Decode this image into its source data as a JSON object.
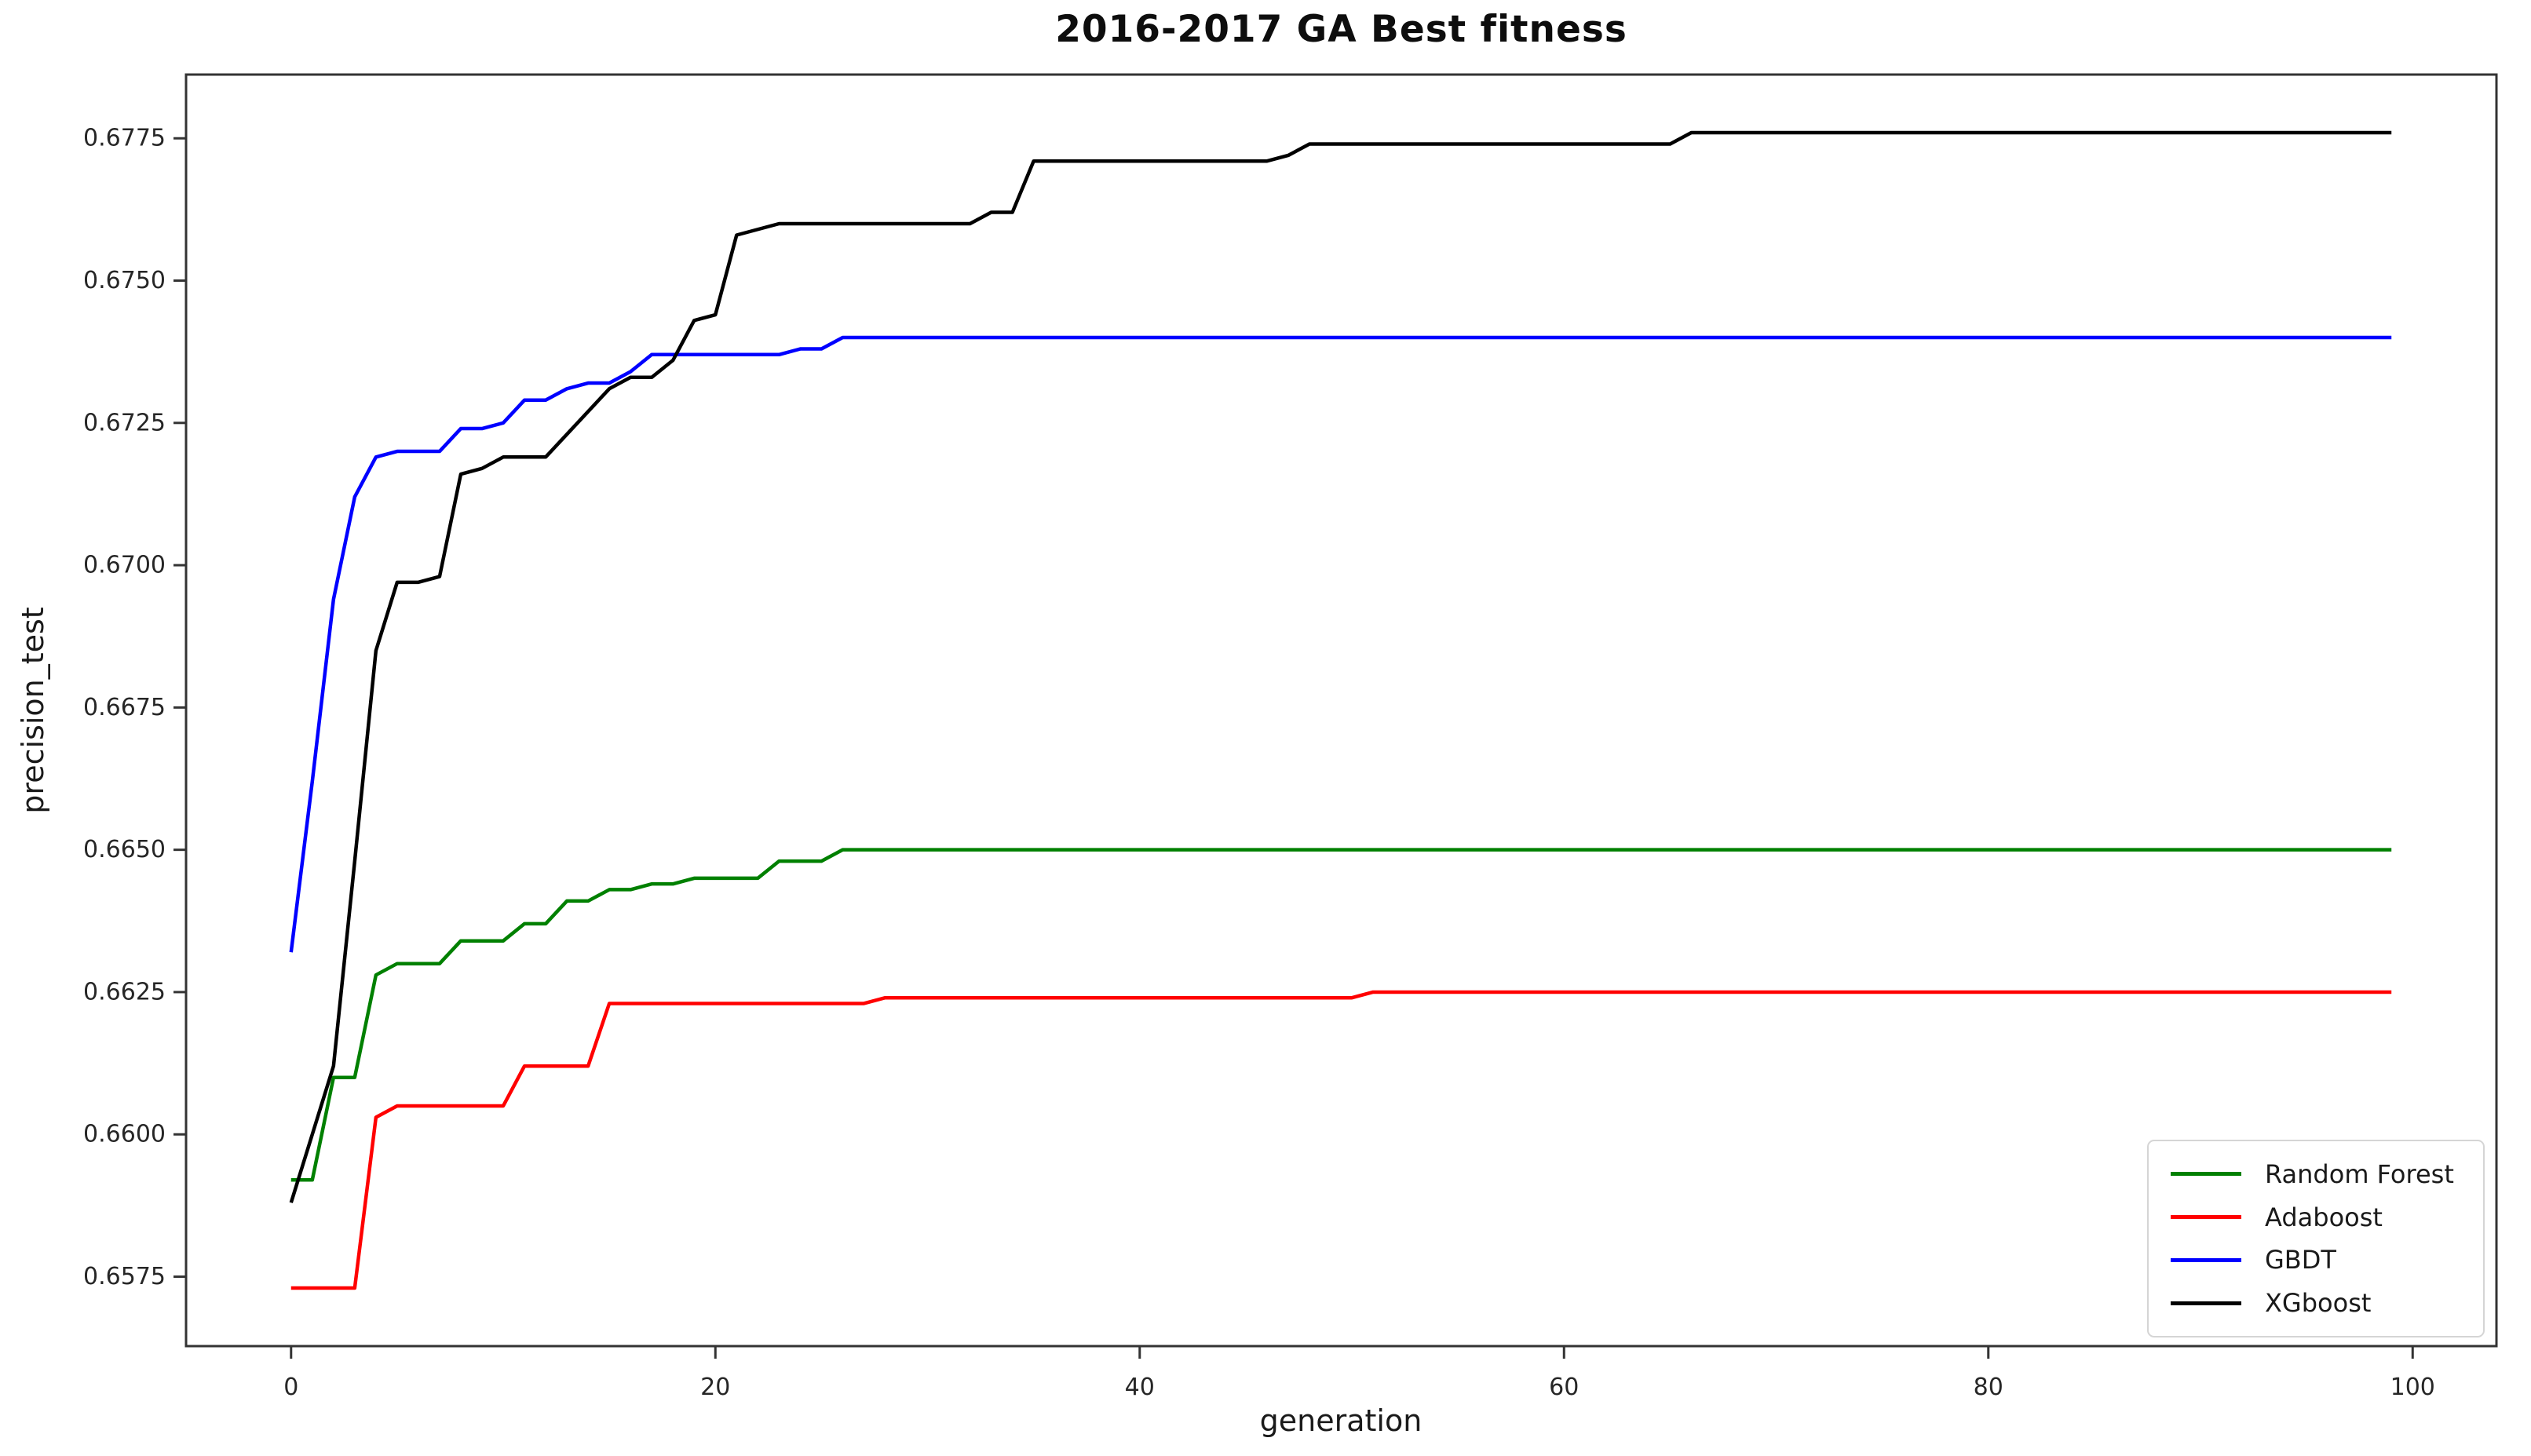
{
  "chart_data": {
    "type": "line",
    "title": "2016-2017 GA Best fitness",
    "xlabel": "generation",
    "ylabel": "precision_test",
    "xlim": [
      -4.95,
      103.95
    ],
    "ylim": [
      0.65628,
      0.67862
    ],
    "xticks": [
      0,
      20,
      40,
      60,
      80,
      100
    ],
    "yticks": [
      0.6575,
      0.66,
      0.6625,
      0.665,
      0.6675,
      0.67,
      0.6725,
      0.675,
      0.6775
    ],
    "grid": false,
    "legend_position": "lower right",
    "axis_color": "#333333",
    "tick_label_color": "#262626",
    "x": [
      0,
      1,
      2,
      3,
      4,
      5,
      6,
      7,
      8,
      9,
      10,
      11,
      12,
      13,
      14,
      15,
      16,
      17,
      18,
      19,
      20,
      21,
      22,
      23,
      24,
      25,
      26,
      27,
      28,
      29,
      30,
      31,
      32,
      33,
      34,
      35,
      36,
      37,
      38,
      39,
      40,
      41,
      42,
      43,
      44,
      45,
      46,
      47,
      48,
      49,
      50,
      51,
      52,
      53,
      54,
      55,
      56,
      57,
      58,
      59,
      60,
      61,
      62,
      63,
      64,
      65,
      66,
      67,
      68,
      69,
      70,
      71,
      72,
      73,
      74,
      75,
      76,
      77,
      78,
      79,
      80,
      81,
      82,
      83,
      84,
      85,
      86,
      87,
      88,
      89,
      90,
      91,
      92,
      93,
      94,
      95,
      96,
      97,
      98,
      99
    ],
    "series": [
      {
        "name": "Random Forest",
        "color": "#008000",
        "values": [
          0.6592,
          0.6592,
          0.661,
          0.661,
          0.6628,
          0.663,
          0.663,
          0.663,
          0.6634,
          0.6634,
          0.6634,
          0.6637,
          0.6637,
          0.6641,
          0.6641,
          0.6643,
          0.6643,
          0.6644,
          0.6644,
          0.6645,
          0.6645,
          0.6645,
          0.6645,
          0.6648,
          0.6648,
          0.6648,
          0.665,
          0.665,
          0.665,
          0.665,
          0.665,
          0.665,
          0.665,
          0.665,
          0.665,
          0.665,
          0.665,
          0.665,
          0.665,
          0.665,
          0.665,
          0.665,
          0.665,
          0.665,
          0.665,
          0.665,
          0.665,
          0.665,
          0.665,
          0.665,
          0.665,
          0.665,
          0.665,
          0.665,
          0.665,
          0.665,
          0.665,
          0.665,
          0.665,
          0.665,
          0.665,
          0.665,
          0.665,
          0.665,
          0.665,
          0.665,
          0.665,
          0.665,
          0.665,
          0.665,
          0.665,
          0.665,
          0.665,
          0.665,
          0.665,
          0.665,
          0.665,
          0.665,
          0.665,
          0.665,
          0.665,
          0.665,
          0.665,
          0.665,
          0.665,
          0.665,
          0.665,
          0.665,
          0.665,
          0.665,
          0.665,
          0.665,
          0.665,
          0.665,
          0.665,
          0.665,
          0.665,
          0.665,
          0.665,
          0.665
        ]
      },
      {
        "name": "Adaboost",
        "color": "#ff0000",
        "values": [
          0.6573,
          0.6573,
          0.6573,
          0.6573,
          0.6603,
          0.6605,
          0.6605,
          0.6605,
          0.6605,
          0.6605,
          0.6605,
          0.6612,
          0.6612,
          0.6612,
          0.6612,
          0.6623,
          0.6623,
          0.6623,
          0.6623,
          0.6623,
          0.6623,
          0.6623,
          0.6623,
          0.6623,
          0.6623,
          0.6623,
          0.6623,
          0.6623,
          0.6624,
          0.6624,
          0.6624,
          0.6624,
          0.6624,
          0.6624,
          0.6624,
          0.6624,
          0.6624,
          0.6624,
          0.6624,
          0.6624,
          0.6624,
          0.6624,
          0.6624,
          0.6624,
          0.6624,
          0.6624,
          0.6624,
          0.6624,
          0.6624,
          0.6624,
          0.6624,
          0.6625,
          0.6625,
          0.6625,
          0.6625,
          0.6625,
          0.6625,
          0.6625,
          0.6625,
          0.6625,
          0.6625,
          0.6625,
          0.6625,
          0.6625,
          0.6625,
          0.6625,
          0.6625,
          0.6625,
          0.6625,
          0.6625,
          0.6625,
          0.6625,
          0.6625,
          0.6625,
          0.6625,
          0.6625,
          0.6625,
          0.6625,
          0.6625,
          0.6625,
          0.6625,
          0.6625,
          0.6625,
          0.6625,
          0.6625,
          0.6625,
          0.6625,
          0.6625,
          0.6625,
          0.6625,
          0.6625,
          0.6625,
          0.6625,
          0.6625,
          0.6625,
          0.6625,
          0.6625,
          0.6625,
          0.6625,
          0.6625
        ]
      },
      {
        "name": "GBDT",
        "color": "#0000ff",
        "values": [
          0.6632,
          0.6662,
          0.6694,
          0.6712,
          0.6719,
          0.672,
          0.672,
          0.672,
          0.6724,
          0.6724,
          0.6725,
          0.6729,
          0.6729,
          0.6731,
          0.6732,
          0.6732,
          0.6734,
          0.6737,
          0.6737,
          0.6737,
          0.6737,
          0.6737,
          0.6737,
          0.6737,
          0.6738,
          0.6738,
          0.674,
          0.674,
          0.674,
          0.674,
          0.674,
          0.674,
          0.674,
          0.674,
          0.674,
          0.674,
          0.674,
          0.674,
          0.674,
          0.674,
          0.674,
          0.674,
          0.674,
          0.674,
          0.674,
          0.674,
          0.674,
          0.674,
          0.674,
          0.674,
          0.674,
          0.674,
          0.674,
          0.674,
          0.674,
          0.674,
          0.674,
          0.674,
          0.674,
          0.674,
          0.674,
          0.674,
          0.674,
          0.674,
          0.674,
          0.674,
          0.674,
          0.674,
          0.674,
          0.674,
          0.674,
          0.674,
          0.674,
          0.674,
          0.674,
          0.674,
          0.674,
          0.674,
          0.674,
          0.674,
          0.674,
          0.674,
          0.674,
          0.674,
          0.674,
          0.674,
          0.674,
          0.674,
          0.674,
          0.674,
          0.674,
          0.674,
          0.674,
          0.674,
          0.674,
          0.674,
          0.674,
          0.674,
          0.674,
          0.674
        ]
      },
      {
        "name": "XGboost",
        "color": "#000000",
        "values": [
          0.6588,
          0.66,
          0.6612,
          0.6648,
          0.6685,
          0.6697,
          0.6697,
          0.6698,
          0.6716,
          0.6717,
          0.6719,
          0.6719,
          0.6719,
          0.6723,
          0.6727,
          0.6731,
          0.6733,
          0.6733,
          0.6736,
          0.6743,
          0.6744,
          0.6758,
          0.6759,
          0.676,
          0.676,
          0.676,
          0.676,
          0.676,
          0.676,
          0.676,
          0.676,
          0.676,
          0.676,
          0.6762,
          0.6762,
          0.6771,
          0.6771,
          0.6771,
          0.6771,
          0.6771,
          0.6771,
          0.6771,
          0.6771,
          0.6771,
          0.6771,
          0.6771,
          0.6771,
          0.6772,
          0.6774,
          0.6774,
          0.6774,
          0.6774,
          0.6774,
          0.6774,
          0.6774,
          0.6774,
          0.6774,
          0.6774,
          0.6774,
          0.6774,
          0.6774,
          0.6774,
          0.6774,
          0.6774,
          0.6774,
          0.6774,
          0.6776,
          0.6776,
          0.6776,
          0.6776,
          0.6776,
          0.6776,
          0.6776,
          0.6776,
          0.6776,
          0.6776,
          0.6776,
          0.6776,
          0.6776,
          0.6776,
          0.6776,
          0.6776,
          0.6776,
          0.6776,
          0.6776,
          0.6776,
          0.6776,
          0.6776,
          0.6776,
          0.6776,
          0.6776,
          0.6776,
          0.6776,
          0.6776,
          0.6776,
          0.6776,
          0.6776,
          0.6776,
          0.6776,
          0.6776
        ]
      }
    ]
  }
}
